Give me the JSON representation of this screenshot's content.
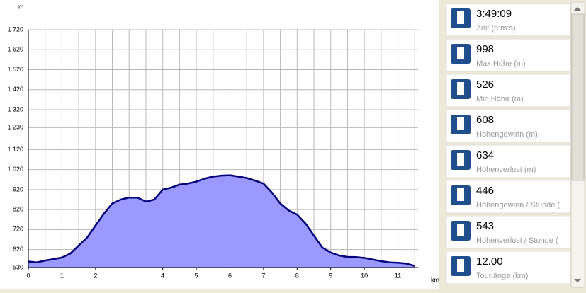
{
  "chart_data": {
    "type": "area",
    "y_label": "m",
    "x_label": "km",
    "x": [
      0,
      0.25,
      0.5,
      0.75,
      1,
      1.25,
      1.5,
      1.75,
      2,
      2.25,
      2.5,
      2.75,
      3,
      3.25,
      3.5,
      3.75,
      4,
      4.25,
      4.5,
      4.75,
      5,
      5.25,
      5.5,
      5.75,
      6,
      6.25,
      6.5,
      6.75,
      7,
      7.25,
      7.5,
      7.75,
      8,
      8.25,
      8.5,
      8.75,
      9,
      9.25,
      9.5,
      9.75,
      10,
      10.25,
      10.5,
      10.75,
      11,
      11.25,
      11.5
    ],
    "values": [
      560,
      556,
      565,
      572,
      580,
      600,
      640,
      680,
      740,
      800,
      850,
      870,
      880,
      880,
      860,
      870,
      920,
      930,
      945,
      950,
      960,
      975,
      985,
      990,
      992,
      985,
      978,
      965,
      950,
      905,
      850,
      815,
      795,
      750,
      690,
      630,
      605,
      590,
      583,
      582,
      578,
      570,
      562,
      556,
      554,
      550,
      538
    ],
    "color": "#9999ff",
    "line_color": "#00007a",
    "xlim": [
      0,
      11.6
    ],
    "xticks": [
      0,
      1,
      2,
      4,
      5,
      6,
      7,
      8,
      9,
      10,
      11
    ],
    "ylim": [
      530,
      1720
    ],
    "yticks": [
      530,
      620,
      720,
      820,
      920,
      {
        "value": 1020,
        "label": "1 020"
      },
      {
        "value": 1120,
        "label": "1 120"
      },
      {
        "value": 1230,
        "label": "1 230"
      },
      {
        "value": 1320,
        "label": "1 320"
      },
      {
        "value": 1420,
        "label": "1 420"
      },
      {
        "value": 1520,
        "label": "1 520"
      },
      {
        "value": 1620,
        "label": "1 620"
      },
      {
        "value": 1720,
        "label": "1 720"
      }
    ],
    "grid": true
  },
  "stats": [
    {
      "value": "3:49:09",
      "label": "Zeit (h:m:s)"
    },
    {
      "value": "998",
      "label": "Max.Höhe (m)"
    },
    {
      "value": "526",
      "label": "Min.Höhe (m)"
    },
    {
      "value": "608",
      "label": "Höhengewinn (m)"
    },
    {
      "value": "634",
      "label": "Höhenverlust (m)"
    },
    {
      "value": "446",
      "label": "Höhengewinn  /  Stunde ("
    },
    {
      "value": "543",
      "label": "Höhenverlust  /  Stunde ("
    },
    {
      "value": "12.00",
      "label": "Tourlänge (km)"
    }
  ]
}
